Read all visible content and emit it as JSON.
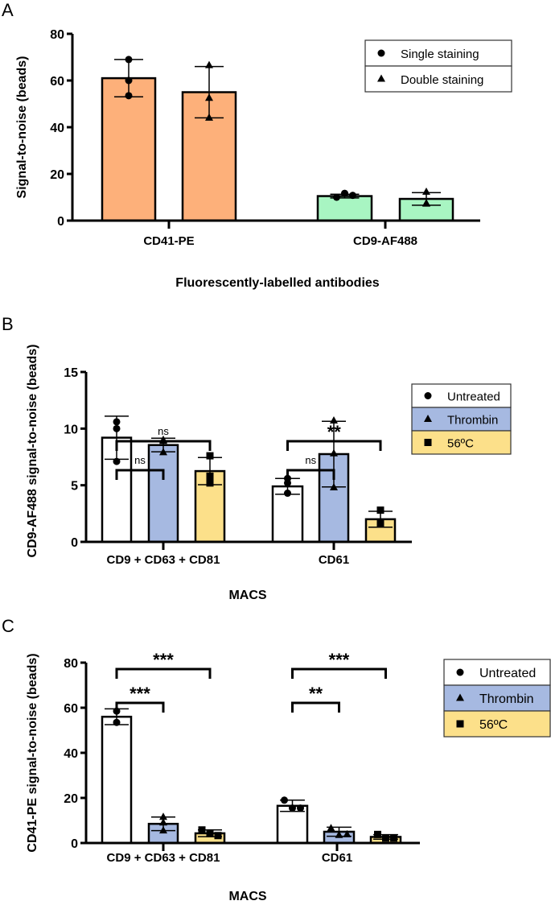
{
  "chart_data": [
    {
      "panel": "A",
      "type": "bar",
      "title": "",
      "xlabel": "Fluorescently-labelled antibodies",
      "ylabel": "Signal-to-noise (beads)",
      "ylim": [
        0,
        80
      ],
      "yticks": [
        0,
        20,
        40,
        60,
        80
      ],
      "categories": [
        "CD41-PE",
        "CD9-AF488"
      ],
      "legend": {
        "position": "top-right",
        "entries": [
          {
            "label": "Single staining",
            "marker": "circle"
          },
          {
            "label": "Double staining",
            "marker": "triangle"
          }
        ]
      },
      "series": [
        {
          "name": "Single staining",
          "marker": "circle",
          "values": [
            61,
            10.5
          ],
          "sd": [
            8,
            0.8
          ],
          "points": [
            [
              69,
              60,
              53.5
            ],
            [
              10,
              11.7,
              10.8
            ]
          ],
          "colors": [
            "#FDB07A",
            "#A8F5C2"
          ]
        },
        {
          "name": "Double staining",
          "marker": "triangle",
          "values": [
            55,
            9.3
          ],
          "sd": [
            11,
            2.7
          ],
          "points": [
            [
              66.5,
              52.5,
              44
            ],
            [
              12.3,
              7.2,
              7.4
            ]
          ],
          "colors": [
            "#FDB07A",
            "#A8F5C2"
          ]
        }
      ],
      "significance": []
    },
    {
      "panel": "B",
      "type": "bar",
      "title": "",
      "xlabel": "MACS",
      "ylabel": "CD9-AF488 signal-to-noise (beads)",
      "ylim": [
        0,
        15
      ],
      "yticks": [
        0,
        5,
        10,
        15
      ],
      "categories": [
        "CD9 + CD63 + CD81",
        "CD61"
      ],
      "legend": {
        "position": "right",
        "entries": [
          {
            "label": "Untreated",
            "marker": "circle",
            "color": "#FFFFFF"
          },
          {
            "label": "Thrombin",
            "marker": "triangle",
            "color": "#A6B9E1"
          },
          {
            "label": "56ºC",
            "marker": "square",
            "color": "#FCE08A"
          }
        ]
      },
      "series": [
        {
          "name": "Untreated",
          "marker": "circle",
          "color": "#FFFFFF",
          "values": [
            9.2,
            4.9
          ],
          "sd": [
            1.9,
            0.7
          ],
          "points": [
            [
              10.6,
              10.0,
              7.1
            ],
            [
              5.6,
              5.2,
              4.3
            ]
          ]
        },
        {
          "name": "Thrombin",
          "marker": "triangle",
          "color": "#A6B9E1",
          "values": [
            8.55,
            7.75
          ],
          "sd": [
            0.6,
            2.9
          ],
          "points": [
            [
              9.0,
              8.9,
              7.9
            ],
            [
              10.7,
              7.8,
              4.8
            ]
          ]
        },
        {
          "name": "56ºC",
          "marker": "square",
          "color": "#FCE08A",
          "values": [
            6.25,
            2.0
          ],
          "sd": [
            1.2,
            0.7
          ],
          "points": [
            [
              7.6,
              5.8,
              5.2
            ],
            [
              2.8,
              1.6,
              1.6
            ]
          ]
        }
      ],
      "significance": [
        {
          "group": 0,
          "from": 0,
          "to": 1,
          "label": "ns",
          "level": 1
        },
        {
          "group": 0,
          "from": 0,
          "to": 2,
          "label": "ns",
          "level": 2
        },
        {
          "group": 1,
          "from": 0,
          "to": 1,
          "label": "ns",
          "level": 1
        },
        {
          "group": 1,
          "from": 0,
          "to": 2,
          "label": "**",
          "level": 2
        }
      ]
    },
    {
      "panel": "C",
      "type": "bar",
      "title": "",
      "xlabel": "MACS",
      "ylabel": "CD41-PE signal-to-noise (beads)",
      "ylim": [
        0,
        80
      ],
      "yticks": [
        0,
        20,
        40,
        60,
        80
      ],
      "categories": [
        "CD9 + CD63 + CD81",
        "CD61"
      ],
      "legend": {
        "position": "right",
        "entries": [
          {
            "label": "Untreated",
            "marker": "circle",
            "color": "#FFFFFF"
          },
          {
            "label": "Thrombin",
            "marker": "triangle",
            "color": "#A6B9E1"
          },
          {
            "label": "56ºC",
            "marker": "square",
            "color": "#FCE08A"
          }
        ]
      },
      "series": [
        {
          "name": "Untreated",
          "marker": "circle",
          "color": "#FFFFFF",
          "values": [
            56,
            16.5
          ],
          "sd": [
            3.5,
            2.5
          ],
          "points": [
            [
              58.5,
              53.5
            ],
            [
              19,
              15.5,
              15.5
            ]
          ]
        },
        {
          "name": "Thrombin",
          "marker": "triangle",
          "color": "#A6B9E1",
          "values": [
            8.5,
            5.0
          ],
          "sd": [
            3.0,
            2.0
          ],
          "points": [
            [
              11.5,
              9.0,
              5.5
            ],
            [
              6.5,
              3.5,
              3.8
            ]
          ]
        },
        {
          "name": "56ºC",
          "marker": "square",
          "color": "#FCE08A",
          "values": [
            4.3,
            2.7
          ],
          "sd": [
            1.5,
            1.0
          ],
          "points": [
            [
              5.8,
              4.2,
              3.3
            ],
            [
              3.8,
              2.2,
              2.2
            ]
          ]
        }
      ],
      "significance": [
        {
          "group": 0,
          "from": 0,
          "to": 1,
          "label": "***",
          "level": 1
        },
        {
          "group": 0,
          "from": 0,
          "to": 2,
          "label": "***",
          "level": 2
        },
        {
          "group": 1,
          "from": 0,
          "to": 1,
          "label": "**",
          "level": 1
        },
        {
          "group": 1,
          "from": 0,
          "to": 2,
          "label": "***",
          "level": 2
        }
      ]
    }
  ]
}
